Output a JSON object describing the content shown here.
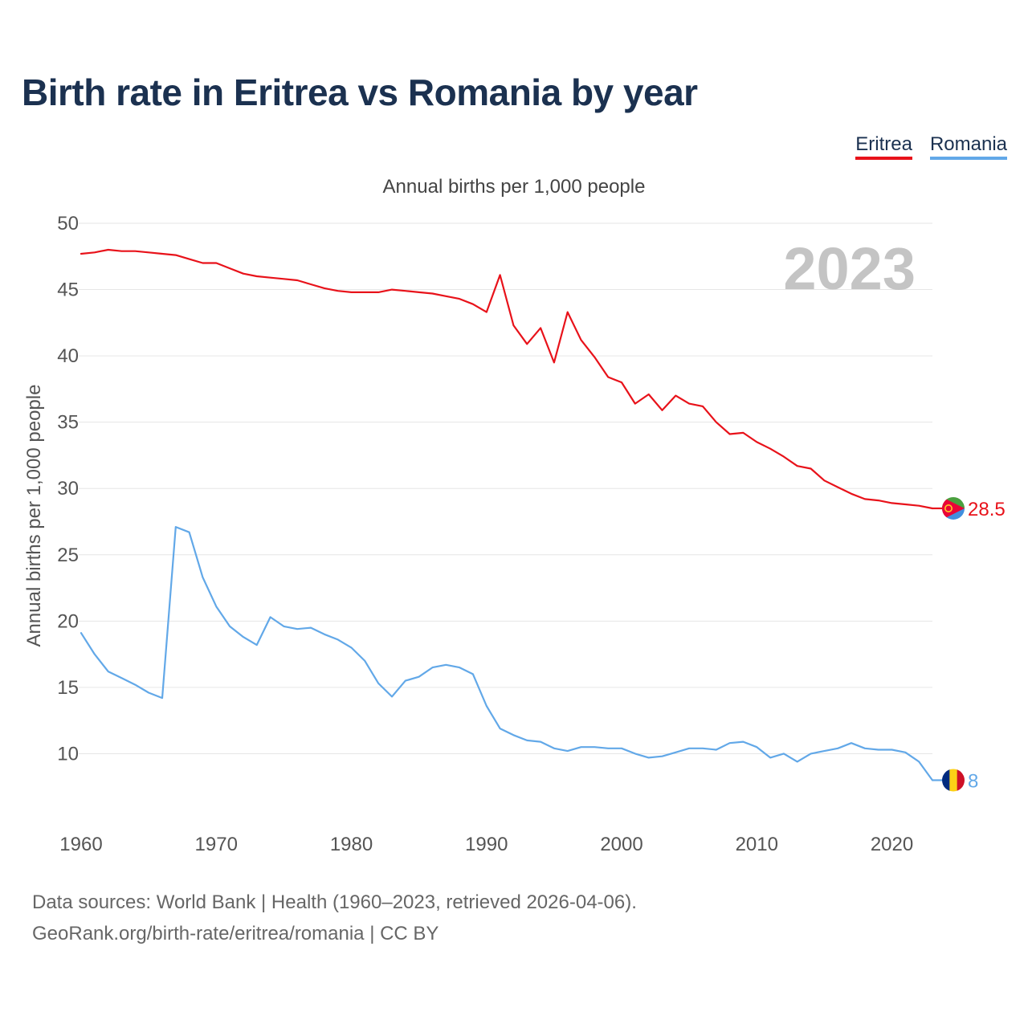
{
  "title": "Birth rate in Eritrea vs Romania by year",
  "source": {
    "line1": "Data sources: World Bank | Health (1960–2023, retrieved 2026-04-06).",
    "line2": "GeoRank.org/birth-rate/eritrea/romania | CC BY"
  },
  "colors": {
    "eritrea": "#e8121a",
    "romania": "#62a8e8",
    "grid": "#e6e6e6",
    "text": "#555555",
    "year_watermark": "#c4c4c4"
  },
  "chart_data": {
    "type": "line",
    "title": "Birth rate in Eritrea vs Romania by year",
    "subtitle": "Annual births per 1,000 people",
    "xlabel": "",
    "ylabel": "Annual births per 1,000 people",
    "xlim": [
      1960,
      2023
    ],
    "ylim": [
      5,
      50
    ],
    "grid": true,
    "legend_position": "top-right",
    "year_label": "2023",
    "x_ticks": [
      1960,
      1970,
      1980,
      1990,
      2000,
      2010,
      2020
    ],
    "y_ticks": [
      10,
      15,
      20,
      25,
      30,
      35,
      40,
      45,
      50
    ],
    "x": [
      1960,
      1961,
      1962,
      1963,
      1964,
      1965,
      1966,
      1967,
      1968,
      1969,
      1970,
      1971,
      1972,
      1973,
      1974,
      1975,
      1976,
      1977,
      1978,
      1979,
      1980,
      1981,
      1982,
      1983,
      1984,
      1985,
      1986,
      1987,
      1988,
      1989,
      1990,
      1991,
      1992,
      1993,
      1994,
      1995,
      1996,
      1997,
      1998,
      1999,
      2000,
      2001,
      2002,
      2003,
      2004,
      2005,
      2006,
      2007,
      2008,
      2009,
      2010,
      2011,
      2012,
      2013,
      2014,
      2015,
      2016,
      2017,
      2018,
      2019,
      2020,
      2021,
      2022,
      2023
    ],
    "series": [
      {
        "name": "Eritrea",
        "color": "#e8121a",
        "end_label": "28.5",
        "values": [
          47.7,
          47.8,
          48.0,
          47.9,
          47.9,
          47.8,
          47.7,
          47.6,
          47.3,
          47.0,
          47.0,
          46.6,
          46.2,
          46.0,
          45.9,
          45.8,
          45.7,
          45.4,
          45.1,
          44.9,
          44.8,
          44.8,
          44.8,
          45.0,
          44.9,
          44.8,
          44.7,
          44.5,
          44.3,
          43.9,
          43.3,
          46.1,
          42.3,
          40.9,
          42.1,
          39.5,
          43.3,
          41.2,
          39.9,
          38.4,
          38.0,
          36.4,
          37.1,
          35.9,
          37.0,
          36.4,
          36.2,
          35.0,
          34.1,
          34.2,
          33.5,
          33.0,
          32.4,
          31.7,
          31.5,
          30.6,
          30.1,
          29.6,
          29.2,
          29.1,
          28.9,
          28.8,
          28.7,
          28.5
        ]
      },
      {
        "name": "Romania",
        "color": "#62a8e8",
        "end_label": "8",
        "values": [
          19.1,
          17.5,
          16.2,
          15.7,
          15.2,
          14.6,
          14.2,
          27.1,
          26.7,
          23.3,
          21.1,
          19.6,
          18.8,
          18.2,
          20.3,
          19.6,
          19.4,
          19.5,
          19.0,
          18.6,
          18.0,
          17.0,
          15.3,
          14.3,
          15.5,
          15.8,
          16.5,
          16.7,
          16.5,
          16.0,
          13.6,
          11.9,
          11.4,
          11.0,
          10.9,
          10.4,
          10.2,
          10.5,
          10.5,
          10.4,
          10.4,
          10.0,
          9.7,
          9.8,
          10.1,
          10.4,
          10.4,
          10.3,
          10.8,
          10.9,
          10.5,
          9.7,
          10.0,
          9.4,
          10.0,
          10.2,
          10.4,
          10.8,
          10.4,
          10.3,
          10.3,
          10.1,
          9.4,
          8.0
        ]
      }
    ]
  }
}
